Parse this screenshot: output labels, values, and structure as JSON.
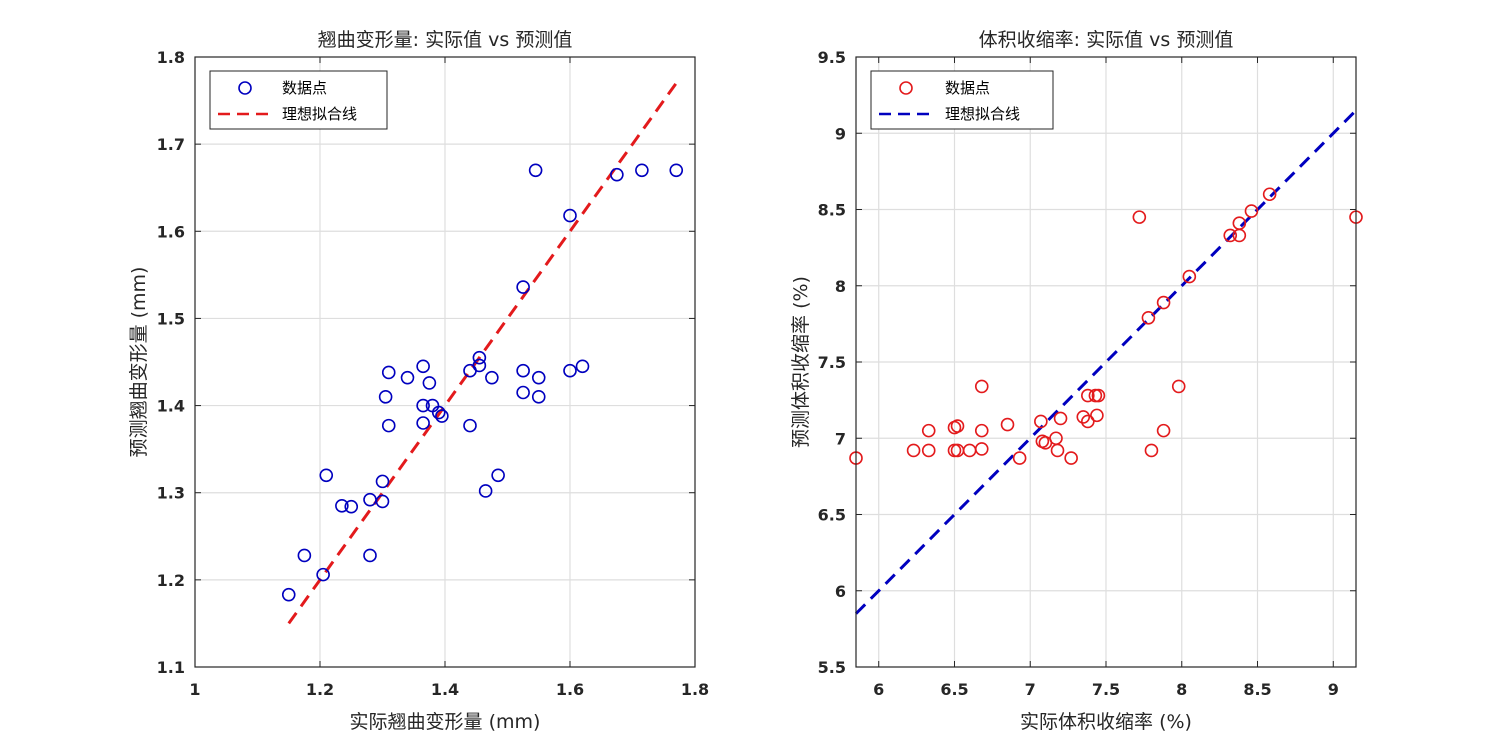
{
  "chart_data": [
    {
      "type": "scatter",
      "title": "翘曲变形量: 实际值 vs 预测值",
      "xlabel": "实际翘曲变形量 (mm)",
      "ylabel": "预测翘曲变形量 (mm)",
      "xlim": [
        1,
        1.8
      ],
      "ylim": [
        1.1,
        1.8
      ],
      "xticks": [
        "1",
        "1.2",
        "1.4",
        "1.6",
        "1.8"
      ],
      "yticks": [
        "1.1",
        "1.2",
        "1.3",
        "1.4",
        "1.5",
        "1.6",
        "1.7",
        "1.8"
      ],
      "grid": true,
      "legend_position": "top-left",
      "point_color": "#0000bf",
      "line_color": "#e31a1c",
      "series": [
        {
          "name": "数据点",
          "kind": "markers",
          "points": [
            [
              1.15,
              1.183
            ],
            [
              1.175,
              1.228
            ],
            [
              1.205,
              1.206
            ],
            [
              1.21,
              1.32
            ],
            [
              1.235,
              1.285
            ],
            [
              1.25,
              1.284
            ],
            [
              1.28,
              1.292
            ],
            [
              1.28,
              1.228
            ],
            [
              1.3,
              1.313
            ],
            [
              1.3,
              1.29
            ],
            [
              1.305,
              1.41
            ],
            [
              1.31,
              1.377
            ],
            [
              1.31,
              1.438
            ],
            [
              1.34,
              1.432
            ],
            [
              1.365,
              1.445
            ],
            [
              1.365,
              1.4
            ],
            [
              1.365,
              1.38
            ],
            [
              1.375,
              1.426
            ],
            [
              1.38,
              1.4
            ],
            [
              1.39,
              1.392
            ],
            [
              1.395,
              1.388
            ],
            [
              1.44,
              1.44
            ],
            [
              1.44,
              1.377
            ],
            [
              1.455,
              1.455
            ],
            [
              1.455,
              1.446
            ],
            [
              1.465,
              1.302
            ],
            [
              1.475,
              1.432
            ],
            [
              1.485,
              1.32
            ],
            [
              1.525,
              1.44
            ],
            [
              1.525,
              1.415
            ],
            [
              1.525,
              1.536
            ],
            [
              1.545,
              1.67
            ],
            [
              1.55,
              1.432
            ],
            [
              1.55,
              1.41
            ],
            [
              1.6,
              1.618
            ],
            [
              1.6,
              1.44
            ],
            [
              1.62,
              1.445
            ],
            [
              1.675,
              1.665
            ],
            [
              1.715,
              1.67
            ],
            [
              1.77,
              1.67
            ]
          ]
        },
        {
          "name": "理想拟合线",
          "kind": "dashed-line",
          "points": [
            [
              1.15,
              1.15
            ],
            [
              1.77,
              1.77
            ]
          ]
        }
      ]
    },
    {
      "type": "scatter",
      "title": "体积收缩率: 实际值 vs 预测值",
      "xlabel": "实际体积收缩率 (%)",
      "ylabel": "预测体积收缩率 (%)",
      "xlim": [
        5.85,
        9.15
      ],
      "ylim": [
        5.5,
        9.5
      ],
      "xtick_values": [
        6,
        6.5,
        7,
        7.5,
        8,
        8.5,
        9
      ],
      "xticks": [
        "6",
        "6.5",
        "7",
        "7.5",
        "8",
        "8.5",
        "9"
      ],
      "yticks": [
        "5.5",
        "6",
        "6.5",
        "7",
        "7.5",
        "8",
        "8.5",
        "9",
        "9.5"
      ],
      "grid": true,
      "legend_position": "top-left",
      "point_color": "#e31a1c",
      "line_color": "#0000bf",
      "series": [
        {
          "name": "数据点",
          "kind": "markers",
          "points": [
            [
              5.85,
              6.87
            ],
            [
              6.23,
              6.92
            ],
            [
              6.33,
              6.92
            ],
            [
              6.33,
              7.05
            ],
            [
              6.5,
              6.92
            ],
            [
              6.5,
              7.07
            ],
            [
              6.52,
              7.08
            ],
            [
              6.52,
              6.92
            ],
            [
              6.6,
              6.92
            ],
            [
              6.68,
              7.34
            ],
            [
              6.68,
              7.05
            ],
            [
              6.68,
              6.93
            ],
            [
              6.85,
              7.09
            ],
            [
              6.93,
              6.87
            ],
            [
              7.07,
              7.11
            ],
            [
              7.08,
              6.98
            ],
            [
              7.1,
              6.97
            ],
            [
              7.17,
              7.0
            ],
            [
              7.18,
              6.92
            ],
            [
              7.2,
              7.13
            ],
            [
              7.27,
              6.87
            ],
            [
              7.35,
              7.14
            ],
            [
              7.38,
              7.28
            ],
            [
              7.38,
              7.11
            ],
            [
              7.43,
              7.28
            ],
            [
              7.44,
              7.15
            ],
            [
              7.45,
              7.28
            ],
            [
              7.72,
              8.45
            ],
            [
              7.78,
              7.79
            ],
            [
              7.8,
              6.92
            ],
            [
              7.88,
              7.05
            ],
            [
              7.88,
              7.89
            ],
            [
              7.98,
              7.34
            ],
            [
              8.05,
              8.06
            ],
            [
              8.32,
              8.33
            ],
            [
              8.38,
              8.41
            ],
            [
              8.38,
              8.33
            ],
            [
              8.46,
              8.49
            ],
            [
              8.58,
              8.6
            ],
            [
              9.15,
              8.45
            ]
          ]
        },
        {
          "name": "理想拟合线",
          "kind": "dashed-line",
          "points": [
            [
              5.85,
              5.85
            ],
            [
              9.15,
              9.15
            ]
          ]
        }
      ]
    }
  ]
}
